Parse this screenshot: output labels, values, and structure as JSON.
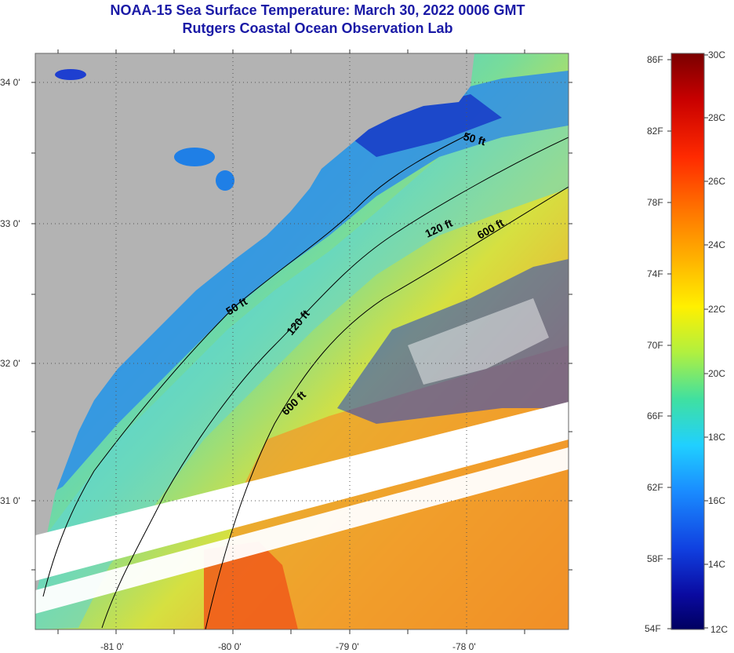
{
  "title": {
    "line1": "NOAA-15 Sea Surface Temperature:  March 30, 2022 0006 GMT",
    "line2": "Rutgers Coastal Ocean Observation Lab"
  },
  "map": {
    "lon_ticks": [
      "-81 0'",
      "-80 0'",
      "-79 0'",
      "-78 0'"
    ],
    "lat_ticks": [
      "34 0'",
      "33 0'",
      "32 0'",
      "31 0'"
    ],
    "isobath_labels": [
      "50 ft",
      "120 ft",
      "600 ft",
      "50 ft",
      "120 ft",
      "600 ft"
    ],
    "colors": {
      "land": "#b3b3b3",
      "cloud": "#ffffff",
      "cold": "#1e3fd0",
      "shelf": "#35c8e8",
      "mid": "#7ee08a",
      "warm": "#e8d235",
      "hot": "#f07a1e"
    }
  },
  "colorbar": {
    "fahrenheit": [
      "86F",
      "82F",
      "78F",
      "74F",
      "70F",
      "66F",
      "62F",
      "58F",
      "54F"
    ],
    "celsius": [
      "30C",
      "28C",
      "26C",
      "24C",
      "22C",
      "20C",
      "18C",
      "16C",
      "14C",
      "12C"
    ],
    "gradient": [
      "#7a0000",
      "#c80000",
      "#ff2a00",
      "#ff7a00",
      "#ffb400",
      "#fff000",
      "#b0f040",
      "#40e0a0",
      "#20d0ff",
      "#1a8cff",
      "#1040e0",
      "#0a0aa0",
      "#000060"
    ]
  }
}
